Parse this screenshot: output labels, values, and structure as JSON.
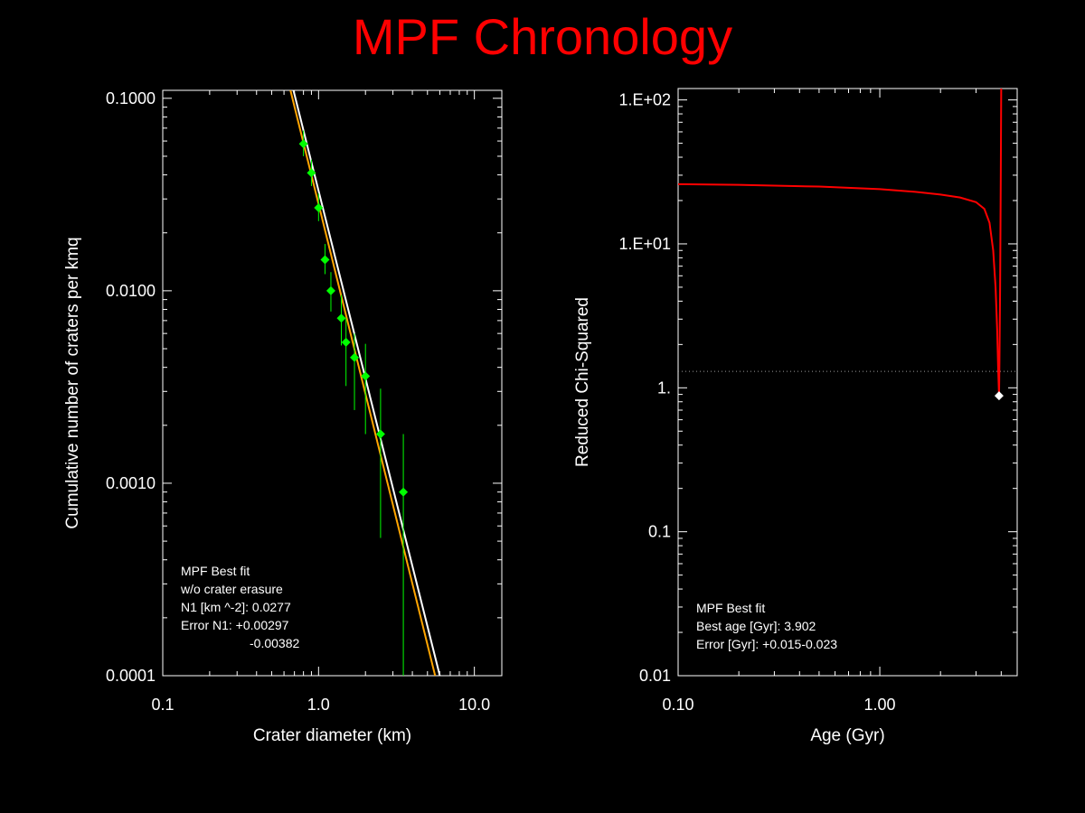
{
  "page": {
    "title": "MPF Chronology"
  },
  "chart_data": [
    {
      "type": "scatter",
      "xlabel": "Crater diameter (km)",
      "ylabel": "Cumulative number of craters per kmq",
      "xscale": "log",
      "yscale": "log",
      "xlim": [
        0.1,
        15.0
      ],
      "ylim": [
        0.0001,
        0.11
      ],
      "xticks": [
        {
          "value": 0.1,
          "label": "0.1"
        },
        {
          "value": 1.0,
          "label": "1.0"
        },
        {
          "value": 10.0,
          "label": "10.0"
        }
      ],
      "yticks": [
        {
          "value": 0.0001,
          "label": "0.0001"
        },
        {
          "value": 0.001,
          "label": "0.0010"
        },
        {
          "value": 0.01,
          "label": "0.0100"
        },
        {
          "value": 0.1,
          "label": "0.1000"
        }
      ],
      "points": {
        "color": "#00ff00",
        "x": [
          0.8,
          0.9,
          1.0,
          1.1,
          1.2,
          1.4,
          1.5,
          1.7,
          2.0,
          2.5,
          3.5
        ],
        "y": [
          0.058,
          0.041,
          0.027,
          0.0145,
          0.01,
          0.0072,
          0.0054,
          0.0045,
          0.0036,
          0.0018,
          0.0009
        ],
        "y_err_low": [
          0.05,
          0.035,
          0.023,
          0.0122,
          0.0078,
          0.0052,
          0.0032,
          0.0024,
          0.0018,
          0.00052,
          0.0001
        ],
        "y_err_high": [
          0.068,
          0.048,
          0.032,
          0.0175,
          0.0125,
          0.0095,
          0.0072,
          0.006,
          0.0053,
          0.0031,
          0.0018
        ]
      },
      "lines": [
        {
          "color": "#ffffff",
          "x": [
            0.69,
            6.0
          ],
          "y": [
            0.11,
            0.0001
          ]
        },
        {
          "color": "#ffa500",
          "x": [
            0.66,
            5.6
          ],
          "y": [
            0.11,
            0.0001
          ]
        }
      ],
      "annotation": [
        {
          "text": "MPF Best fit",
          "color": "#ff2020"
        },
        {
          "text": "w/o crater erasure",
          "color": "#ffffff"
        },
        {
          "text": "N1 [km ^-2]: 0.0277",
          "color": "#ffffff"
        },
        {
          "text": "Error N1: +0.00297",
          "color": "#ffffff"
        },
        {
          "text": "-0.00382",
          "color": "#ffffff"
        }
      ]
    },
    {
      "type": "line",
      "xlabel": "Age (Gyr)",
      "ylabel": "Reduced Chi-Squared",
      "xscale": "log",
      "yscale": "log",
      "xlim": [
        0.1,
        4.8
      ],
      "ylim": [
        0.01,
        120
      ],
      "xticks": [
        {
          "value": 0.1,
          "label": "0.10"
        },
        {
          "value": 1.0,
          "label": "1.00"
        }
      ],
      "yticks": [
        {
          "value": 0.01,
          "label": "0.01"
        },
        {
          "value": 0.1,
          "label": "0.1"
        },
        {
          "value": 1,
          "label": "1."
        },
        {
          "value": 10,
          "label": "1.E+01"
        },
        {
          "value": 100,
          "label": "1.E+02"
        }
      ],
      "series": [
        {
          "color": "#ff0000",
          "x": [
            0.1,
            0.2,
            0.5,
            1.0,
            1.5,
            2.0,
            2.5,
            3.0,
            3.3,
            3.5,
            3.65,
            3.75,
            3.82,
            3.86,
            3.89,
            3.902,
            3.92,
            3.95,
            3.98,
            4.0
          ],
          "y": [
            26,
            25.7,
            25,
            24,
            23,
            22,
            21,
            19.5,
            17.5,
            14,
            9,
            5,
            2.5,
            1.4,
            1.0,
            0.88,
            1.5,
            5,
            30,
            120
          ]
        }
      ],
      "reference_line": {
        "y": 1.3,
        "color": "#999999",
        "style": "dotted"
      },
      "best_marker": {
        "x": 3.902,
        "y": 0.88,
        "color": "#ffffff"
      },
      "annotation": [
        {
          "text": "MPF Best fit",
          "color": "#ff2020"
        },
        {
          "text": "Best age [Gyr]: 3.902",
          "color": "#ffffff"
        },
        {
          "text": "Error [Gyr]: +0.015-0.023",
          "color": "#ffffff"
        }
      ]
    }
  ]
}
